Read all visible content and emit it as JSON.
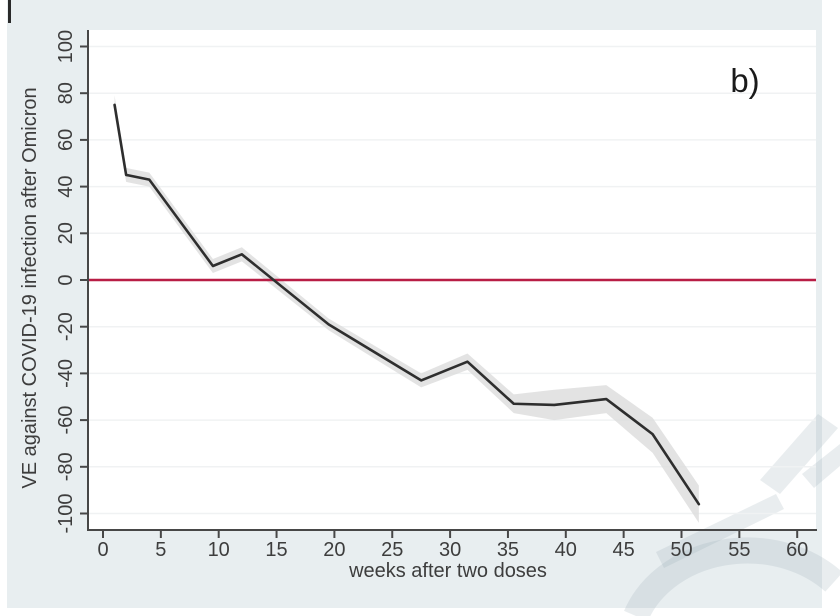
{
  "figure": {
    "panel_label": "b)",
    "colors": {
      "background": "#e8eef0",
      "plot_bg": "#ffffff",
      "grid": "#f0f2f3",
      "axis": "#474747",
      "text": "#3d3d3d",
      "series_line": "#2e2e2e",
      "reference_line": "#b81d45",
      "ci_band": "#dcdcdc",
      "watermark": "#9cadb5"
    }
  },
  "chart_data": {
    "type": "line",
    "title": "",
    "xlabel": "weeks after two doses",
    "ylabel": "VE against COVID-19 infection after Omicron",
    "xlim": [
      -1.3,
      61.7
    ],
    "ylim": [
      -107,
      107
    ],
    "x_ticks": [
      0,
      5,
      10,
      15,
      20,
      25,
      30,
      35,
      40,
      45,
      50,
      55,
      60
    ],
    "y_ticks": [
      100,
      80,
      60,
      40,
      20,
      0,
      -20,
      -40,
      -60,
      -80,
      -100
    ],
    "grid": "horizontal-only",
    "legend": "none",
    "reference_line_y": 0,
    "series": [
      {
        "name": "VE point estimate with shaded confidence band",
        "x": [
          1,
          2,
          4,
          9.5,
          12,
          19.5,
          27.5,
          31.5,
          35.5,
          39,
          43.5,
          47.5,
          51.5
        ],
        "y": [
          75,
          45,
          43,
          6,
          11,
          -19,
          -43,
          -35,
          -53,
          -53.5,
          -51,
          -66,
          -96
        ],
        "ci_upper": [
          79,
          48,
          46,
          9,
          14,
          -16.5,
          -40,
          -31.5,
          -49,
          -47,
          -45,
          -59,
          -88
        ],
        "ci_lower": [
          71,
          42,
          40,
          3,
          8,
          -21.5,
          -46,
          -38.5,
          -57,
          -60,
          -57,
          -74,
          -104
        ]
      }
    ]
  }
}
